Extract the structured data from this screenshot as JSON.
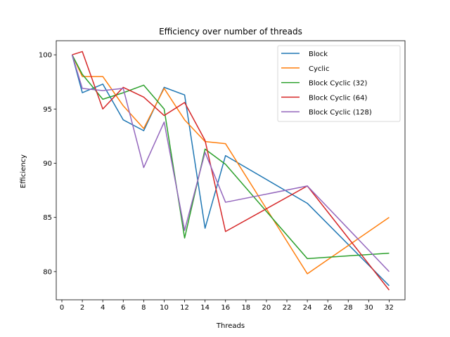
{
  "chart_data": {
    "type": "line",
    "title": "Efficiency over number of threads",
    "xlabel": "Threads",
    "ylabel": "Efficiency",
    "xlim": [
      -0.55,
      33.55
    ],
    "ylim": [
      77.4,
      101.3
    ],
    "xticks": [
      0,
      2,
      4,
      6,
      8,
      10,
      12,
      14,
      16,
      18,
      20,
      22,
      24,
      26,
      28,
      30,
      32
    ],
    "yticks": [
      80,
      85,
      90,
      95,
      100
    ],
    "grid": false,
    "legend_position": "top-right",
    "x": [
      1,
      2,
      4,
      6,
      8,
      10,
      12,
      14,
      16,
      24,
      32
    ],
    "series": [
      {
        "name": "Block",
        "color": "#1f77b4",
        "values": [
          100,
          96.5,
          97.3,
          94.0,
          93.0,
          97.0,
          96.3,
          84.0,
          90.7,
          86.3,
          78.7
        ]
      },
      {
        "name": "Cyclic",
        "color": "#ff7f0e",
        "values": [
          100,
          98.0,
          98.0,
          95.3,
          93.2,
          96.9,
          94.0,
          92.0,
          91.8,
          79.8,
          85.0
        ]
      },
      {
        "name": "Block Cyclic (32)",
        "color": "#2ca02c",
        "values": [
          100,
          98.2,
          95.9,
          96.5,
          97.2,
          95.0,
          83.1,
          91.3,
          89.9,
          81.2,
          81.7
        ]
      },
      {
        "name": "Block Cyclic (64)",
        "color": "#d62728",
        "values": [
          100,
          100.3,
          95.0,
          97.0,
          96.1,
          94.4,
          95.6,
          92.1,
          83.7,
          87.9,
          78.3
        ]
      },
      {
        "name": "Block Cyclic (128)",
        "color": "#9467bd",
        "values": [
          100,
          96.9,
          96.7,
          96.9,
          89.6,
          93.8,
          83.8,
          91.0,
          86.4,
          87.9,
          80.0
        ]
      }
    ]
  }
}
